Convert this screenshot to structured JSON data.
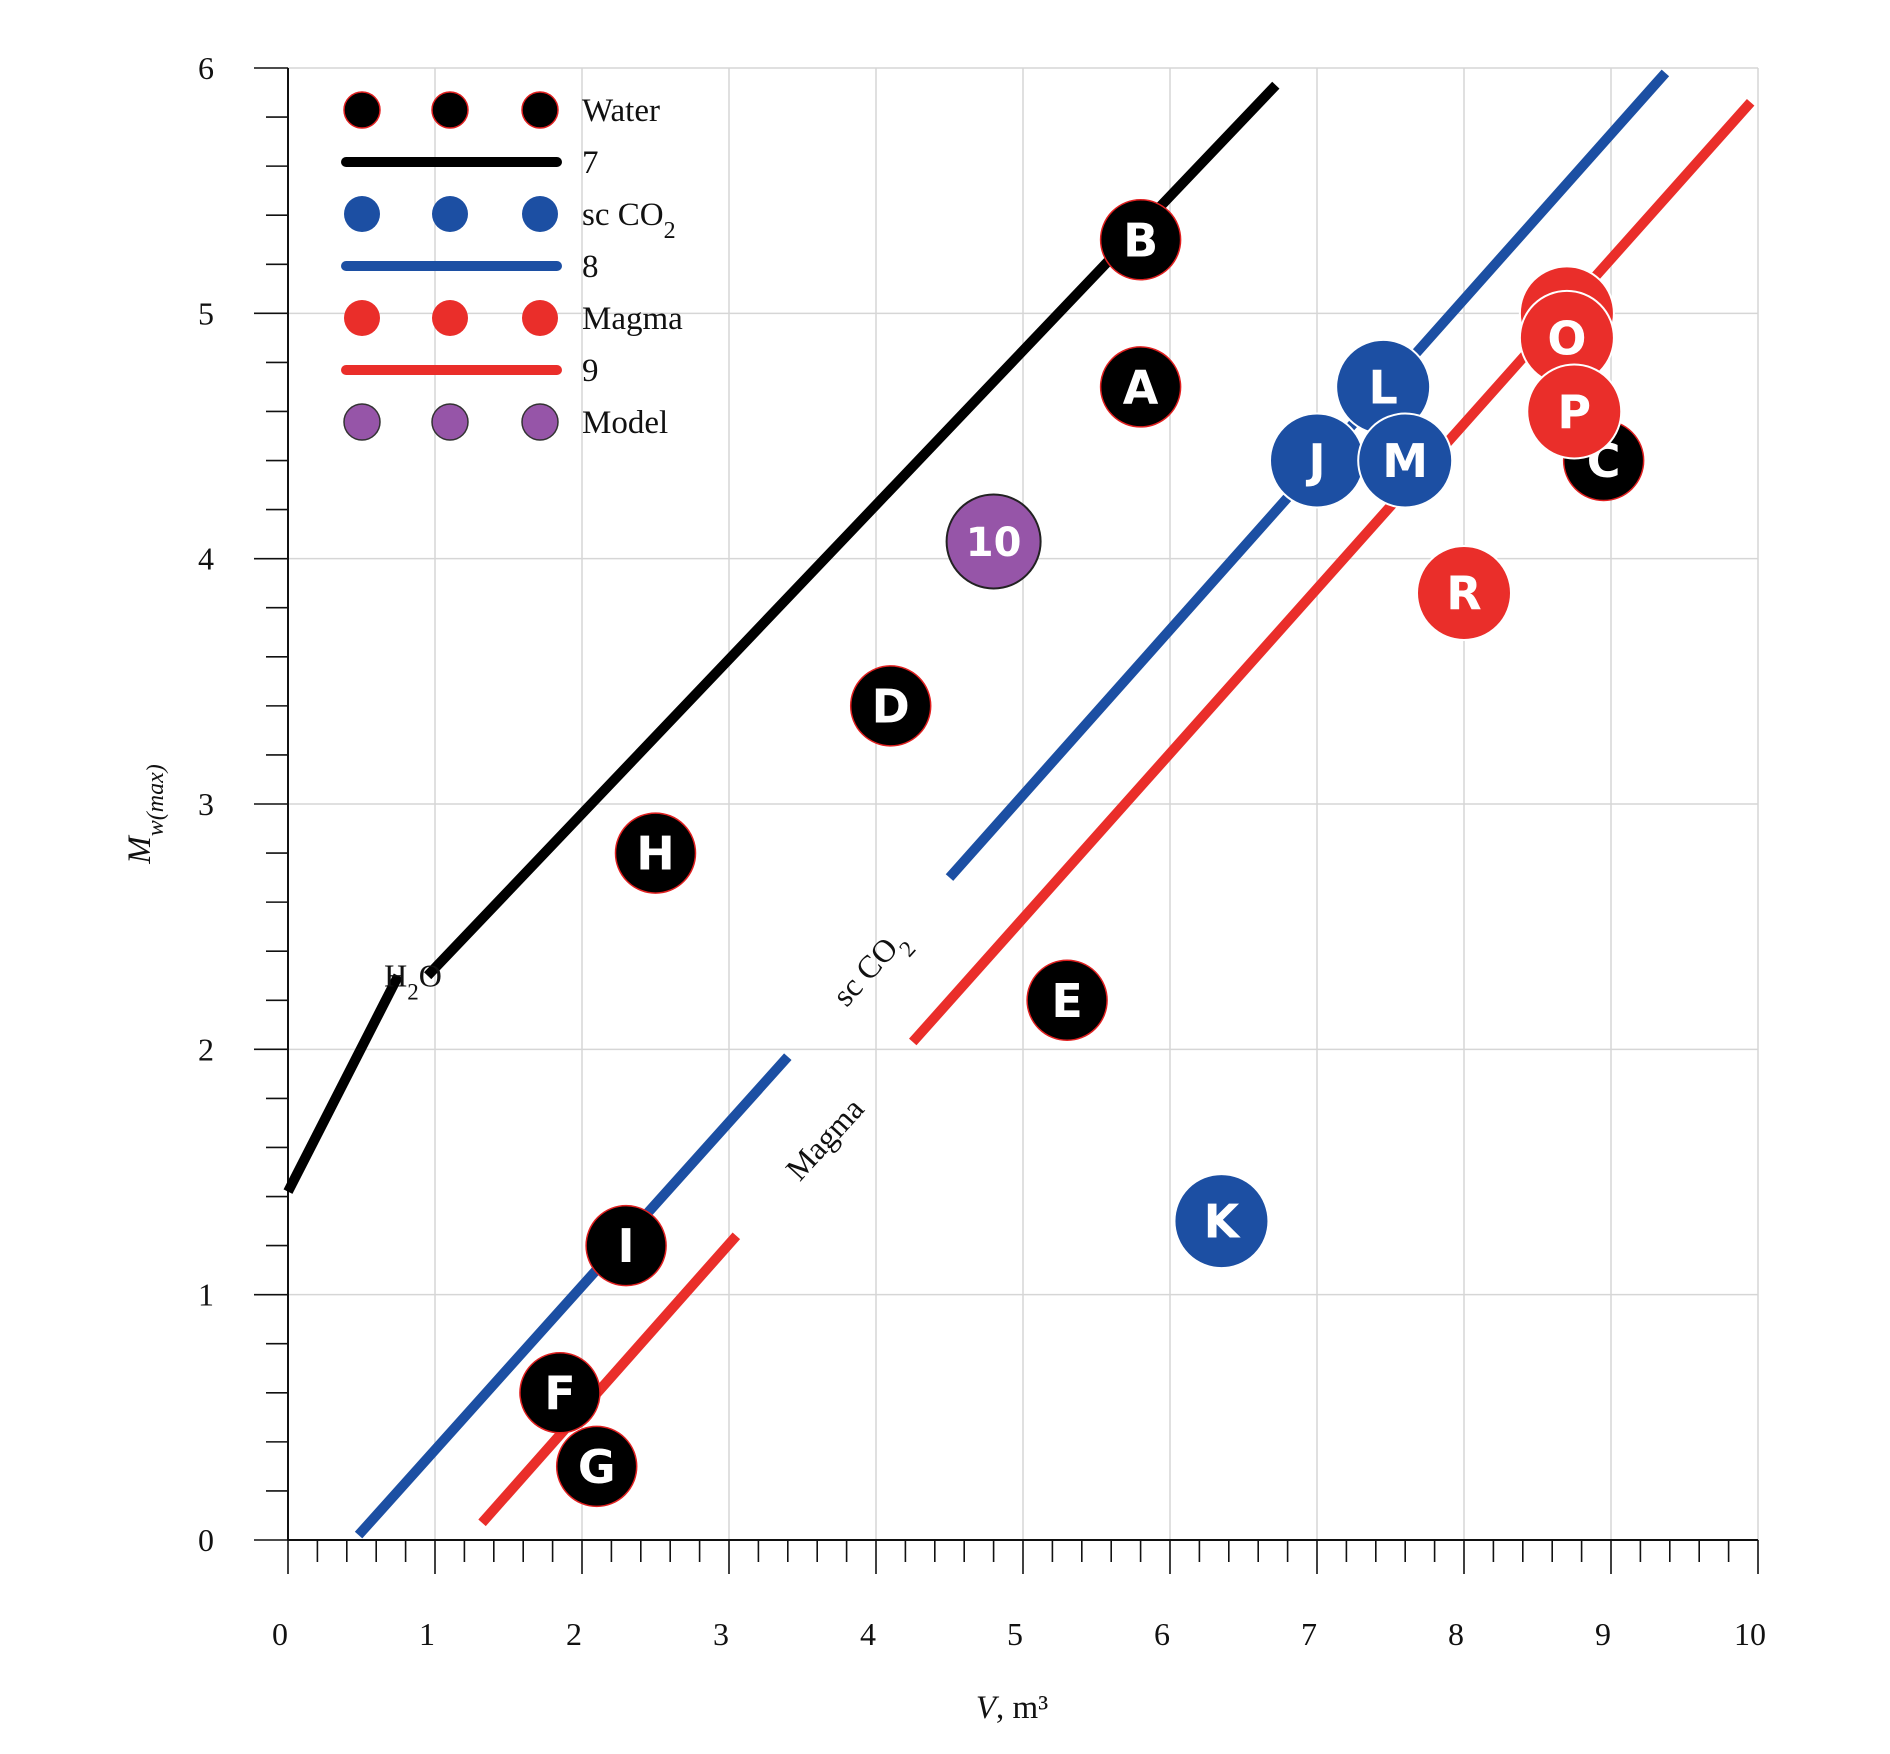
{
  "chart_data": {
    "type": "scatter",
    "xlabel": {
      "var": "V",
      "rest": ", m³"
    },
    "ylabel": {
      "var": "M",
      "sub": "w(max)"
    },
    "xlim": [
      0,
      10
    ],
    "ylim": [
      0,
      6
    ],
    "x_ticks": [
      "0",
      "1",
      "2",
      "3",
      "4",
      "5",
      "6",
      "7",
      "8",
      "9",
      "10"
    ],
    "y_ticks": [
      "0",
      "1",
      "2",
      "3",
      "4",
      "5",
      "6"
    ],
    "grid": true,
    "colors": {
      "water": "#000000",
      "co2": "#1c4fa3",
      "magma": "#ea2e2a",
      "model": "#9655a8",
      "grid": "#d6d6d6"
    },
    "legend": [
      {
        "label": "Water",
        "kind": "marker",
        "group": "water"
      },
      {
        "label": "7",
        "kind": "line",
        "group": "water"
      },
      {
        "label": "sc CO",
        "sub": "2",
        "kind": "marker",
        "group": "co2"
      },
      {
        "label": "8",
        "kind": "line",
        "group": "co2"
      },
      {
        "label": "Magma",
        "kind": "marker",
        "group": "magma"
      },
      {
        "label": "9",
        "kind": "line",
        "group": "magma"
      },
      {
        "label": "Model",
        "kind": "marker",
        "group": "model"
      }
    ],
    "fit_lines": [
      {
        "name": "7",
        "group": "water",
        "label": "H",
        "label_sub": "2",
        "label_rest": "O",
        "segments": [
          [
            0,
            1.42,
            0.75,
            2.3
          ],
          [
            0.95,
            2.3,
            6.72,
            5.93
          ]
        ]
      },
      {
        "name": "8",
        "group": "co2",
        "label": "sc CO",
        "label_sub": "2",
        "label_rest": "",
        "segments": [
          [
            0.48,
            0.02,
            3.4,
            1.97
          ],
          [
            4.5,
            2.7,
            9.37,
            5.98
          ]
        ]
      },
      {
        "name": "9",
        "group": "magma",
        "label": "Magma",
        "label_sub": "",
        "label_rest": "",
        "segments": [
          [
            1.32,
            0.07,
            3.05,
            1.24
          ],
          [
            4.25,
            2.03,
            9.95,
            5.86
          ]
        ]
      }
    ],
    "points": [
      {
        "label": "A",
        "x": 5.8,
        "y": 4.7,
        "group": "water"
      },
      {
        "label": "B",
        "x": 5.8,
        "y": 5.3,
        "group": "water"
      },
      {
        "label": "C",
        "x": 8.95,
        "y": 4.4,
        "group": "water"
      },
      {
        "label": "D",
        "x": 4.1,
        "y": 3.4,
        "group": "water"
      },
      {
        "label": "E",
        "x": 5.3,
        "y": 2.2,
        "group": "water"
      },
      {
        "label": "F",
        "x": 1.85,
        "y": 0.6,
        "group": "water"
      },
      {
        "label": "G",
        "x": 2.1,
        "y": 0.3,
        "group": "water"
      },
      {
        "label": "H",
        "x": 2.5,
        "y": 2.8,
        "group": "water"
      },
      {
        "label": "I",
        "x": 2.3,
        "y": 1.2,
        "group": "water"
      },
      {
        "label": "J",
        "x": 7.0,
        "y": 4.4,
        "group": "co2"
      },
      {
        "label": "K",
        "x": 6.35,
        "y": 1.3,
        "group": "co2"
      },
      {
        "label": "L",
        "x": 7.45,
        "y": 4.7,
        "group": "co2"
      },
      {
        "label": "M",
        "x": 7.6,
        "y": 4.4,
        "group": "co2"
      },
      {
        "label": "N",
        "x": 8.7,
        "y": 5.0,
        "group": "magma"
      },
      {
        "label": "O",
        "x": 8.7,
        "y": 4.9,
        "group": "magma"
      },
      {
        "label": "P",
        "x": 8.75,
        "y": 4.6,
        "group": "magma"
      },
      {
        "label": "R",
        "x": 8.0,
        "y": 3.86,
        "group": "magma"
      },
      {
        "label": "10",
        "x": 4.8,
        "y": 4.07,
        "group": "model"
      }
    ]
  }
}
